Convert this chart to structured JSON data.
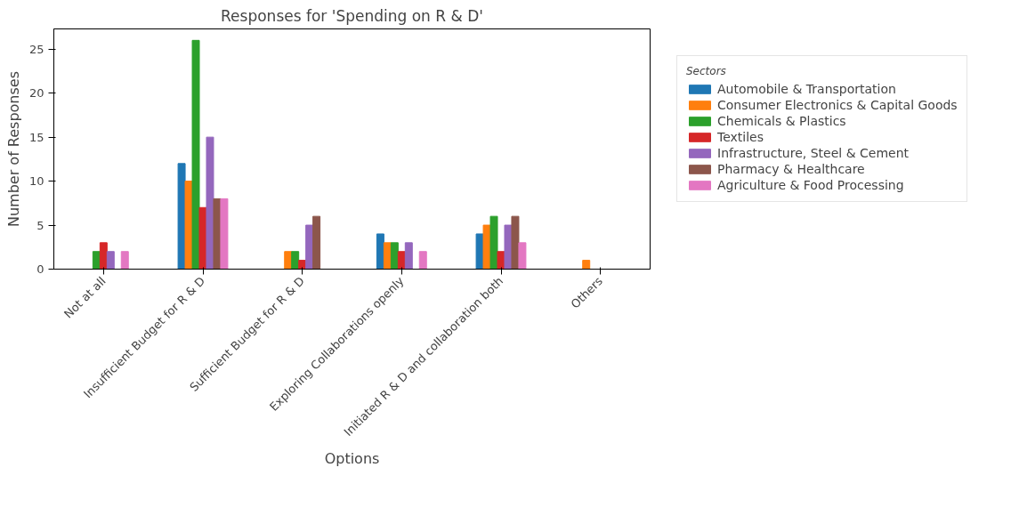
{
  "chart_data": {
    "type": "bar",
    "title": "Responses for 'Spending on R & D'",
    "xlabel": "Options",
    "ylabel": "Number of Responses",
    "legend_title": "Sectors",
    "categories": [
      "Not at all",
      "Insufficient Budget for R & D",
      "Sufficient Budget for R & D",
      "Exploring Collaborations openly",
      "Initiated R & D and collaboration both",
      "Others"
    ],
    "series": [
      {
        "name": "Automobile & Transportation",
        "color": "#1f77b4",
        "values": [
          0,
          12,
          0,
          4,
          4,
          0
        ]
      },
      {
        "name": "Consumer Electronics & Capital Goods",
        "color": "#ff7f0e",
        "values": [
          0,
          10,
          2,
          3,
          5,
          1
        ]
      },
      {
        "name": "Chemicals & Plastics",
        "color": "#2ca02c",
        "values": [
          2,
          26,
          2,
          3,
          6,
          0
        ]
      },
      {
        "name": "Textiles",
        "color": "#d62728",
        "values": [
          3,
          7,
          1,
          2,
          2,
          0
        ]
      },
      {
        "name": "Infrastructure, Steel & Cement",
        "color": "#9467bd",
        "values": [
          2,
          15,
          5,
          3,
          5,
          0
        ]
      },
      {
        "name": "Pharmacy & Healthcare",
        "color": "#8c564b",
        "values": [
          0,
          8,
          6,
          0,
          6,
          0
        ]
      },
      {
        "name": "Agriculture & Food Processing",
        "color": "#e377c2",
        "values": [
          2,
          8,
          0,
          2,
          3,
          0
        ]
      }
    ],
    "ylim": [
      0,
      27.3
    ],
    "yticks": [
      0,
      5,
      10,
      15,
      20,
      25
    ],
    "grid": false,
    "legend": "right"
  }
}
